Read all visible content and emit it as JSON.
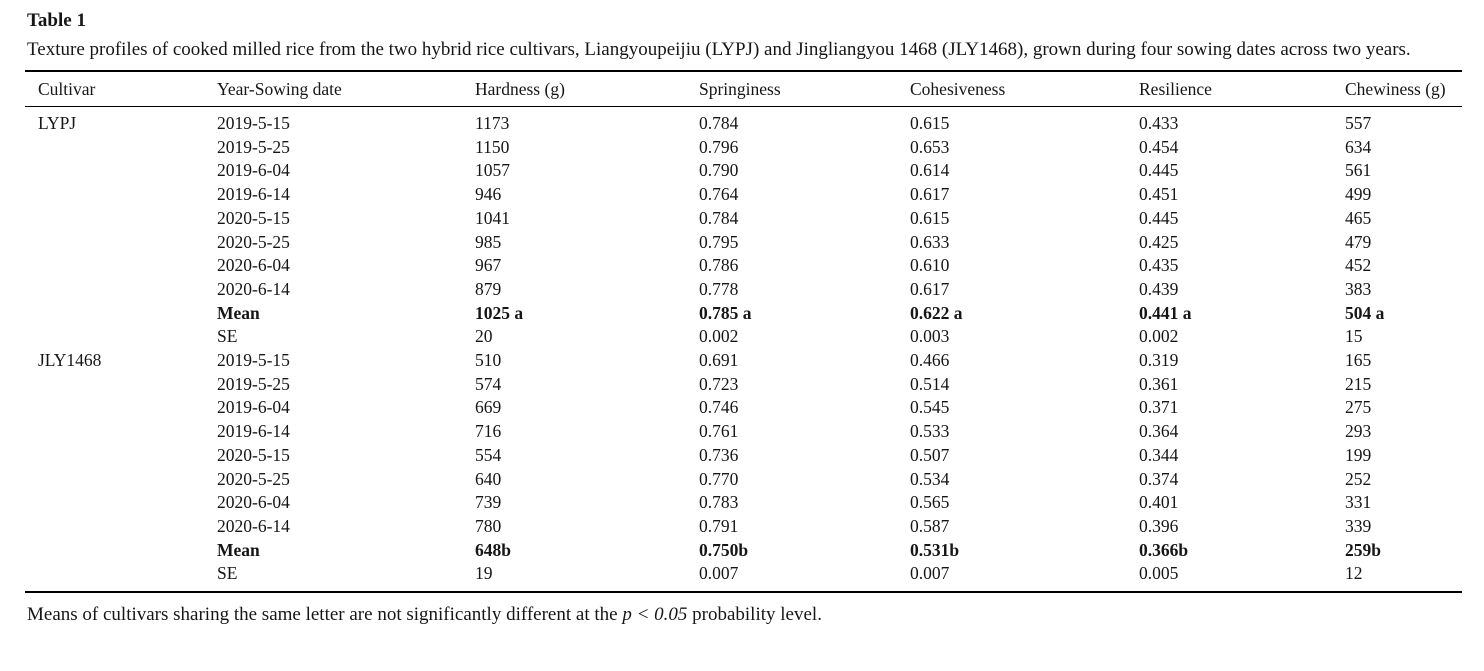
{
  "page": {
    "title": "Table 1",
    "caption": "Texture profiles of cooked milled rice from the two hybrid rice cultivars, Liangyoupeijiu (LYPJ) and Jingliangyou 1468 (JLY1468), grown during four sowing dates across two years.",
    "footnote": {
      "pre": "Means of cultivars sharing the same letter are not significantly different at the ",
      "stat": "p < 0.05",
      "post": " probability level."
    }
  },
  "table": {
    "columns": [
      "Cultivar",
      "Year-Sowing date",
      "Hardness (g)",
      "Springiness",
      "Cohesiveness",
      "Resilience",
      "Chewiness (g)"
    ],
    "rows": [
      {
        "bold": false,
        "cells": [
          "LYPJ",
          "2019-5-15",
          "1173",
          "0.784",
          "0.615",
          "0.433",
          "557"
        ]
      },
      {
        "bold": false,
        "cells": [
          "",
          "2019-5-25",
          "1150",
          "0.796",
          "0.653",
          "0.454",
          "634"
        ]
      },
      {
        "bold": false,
        "cells": [
          "",
          "2019-6-04",
          "1057",
          "0.790",
          "0.614",
          "0.445",
          "561"
        ]
      },
      {
        "bold": false,
        "cells": [
          "",
          "2019-6-14",
          "946",
          "0.764",
          "0.617",
          "0.451",
          "499"
        ]
      },
      {
        "bold": false,
        "cells": [
          "",
          "2020-5-15",
          "1041",
          "0.784",
          "0.615",
          "0.445",
          "465"
        ]
      },
      {
        "bold": false,
        "cells": [
          "",
          "2020-5-25",
          "985",
          "0.795",
          "0.633",
          "0.425",
          "479"
        ]
      },
      {
        "bold": false,
        "cells": [
          "",
          "2020-6-04",
          "967",
          "0.786",
          "0.610",
          "0.435",
          "452"
        ]
      },
      {
        "bold": false,
        "cells": [
          "",
          "2020-6-14",
          "879",
          "0.778",
          "0.617",
          "0.439",
          "383"
        ]
      },
      {
        "bold": true,
        "cells": [
          "",
          "Mean",
          "1025 a",
          "0.785 a",
          "0.622 a",
          "0.441 a",
          "504 a"
        ]
      },
      {
        "bold": false,
        "cells": [
          "",
          "SE",
          "20",
          "0.002",
          "0.003",
          "0.002",
          "15"
        ]
      },
      {
        "bold": false,
        "cells": [
          "JLY1468",
          "2019-5-15",
          "510",
          "0.691",
          "0.466",
          "0.319",
          "165"
        ]
      },
      {
        "bold": false,
        "cells": [
          "",
          "2019-5-25",
          "574",
          "0.723",
          "0.514",
          "0.361",
          "215"
        ]
      },
      {
        "bold": false,
        "cells": [
          "",
          "2019-6-04",
          "669",
          "0.746",
          "0.545",
          "0.371",
          "275"
        ]
      },
      {
        "bold": false,
        "cells": [
          "",
          "2019-6-14",
          "716",
          "0.761",
          "0.533",
          "0.364",
          "293"
        ]
      },
      {
        "bold": false,
        "cells": [
          "",
          "2020-5-15",
          "554",
          "0.736",
          "0.507",
          "0.344",
          "199"
        ]
      },
      {
        "bold": false,
        "cells": [
          "",
          "2020-5-25",
          "640",
          "0.770",
          "0.534",
          "0.374",
          "252"
        ]
      },
      {
        "bold": false,
        "cells": [
          "",
          "2020-6-04",
          "739",
          "0.783",
          "0.565",
          "0.401",
          "331"
        ]
      },
      {
        "bold": false,
        "cells": [
          "",
          "2020-6-14",
          "780",
          "0.791",
          "0.587",
          "0.396",
          "339"
        ]
      },
      {
        "bold": true,
        "cells": [
          "",
          "Mean",
          "648b",
          "0.750b",
          "0.531b",
          "0.366b",
          "259b"
        ]
      },
      {
        "bold": false,
        "cells": [
          "",
          "SE",
          "19",
          "0.007",
          "0.007",
          "0.005",
          "12"
        ]
      }
    ]
  }
}
